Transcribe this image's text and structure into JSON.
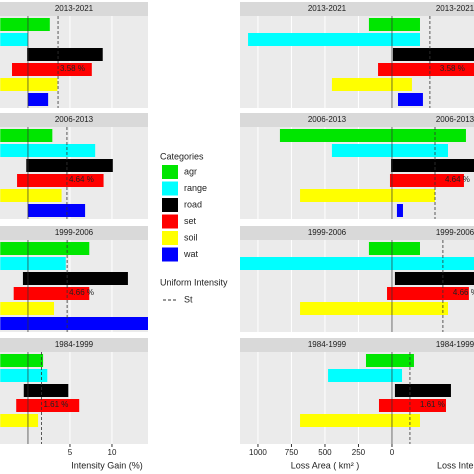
{
  "chart_data": [
    {
      "type": "floating-bar",
      "xlabel": "Intensity Gain (%)",
      "xlim": [
        -3.33,
        14.29
      ],
      "xticks": [
        5,
        10
      ],
      "facets": [
        {
          "title": "2013-2021",
          "start": [
            -3.3,
            -3.3,
            -0.1,
            -1.9,
            -3.3,
            0
          ],
          "end": [
            2.6,
            0,
            8.9,
            7.6,
            3.5,
            2.4
          ],
          "uniform": 3.58,
          "uniform_label": "3.58 %"
        },
        {
          "title": "2006-2013",
          "start": [
            -3.3,
            -3.3,
            -0.2,
            -1.3,
            -3.3,
            0
          ],
          "end": [
            2.9,
            8.0,
            10.1,
            9.0,
            4.0,
            6.8
          ],
          "uniform": 4.64,
          "uniform_label": "4.64 %"
        },
        {
          "title": "1999-2006",
          "start": [
            -3.3,
            -3.3,
            -0.6,
            -1.7,
            -3.3,
            -3.3
          ],
          "end": [
            7.3,
            4.5,
            11.9,
            7.3,
            3.1,
            14.3
          ],
          "uniform": 4.66,
          "uniform_label": "4.66 %"
        },
        {
          "title": "1984-1999",
          "start": [
            -3.3,
            -3.3,
            -0.5,
            -1.4,
            -3.3,
            null
          ],
          "end": [
            1.8,
            2.3,
            4.8,
            6.1,
            1.2,
            null
          ],
          "uniform": 1.61,
          "uniform_label": "1.61 %"
        }
      ]
    },
    {
      "type": "floating-bar",
      "xlabel": "Loss Area ( km² )",
      "xlabel2": "Loss Inte",
      "xlim": [
        1134,
        -612
      ],
      "xticks": [
        1000,
        750,
        500,
        250,
        0
      ],
      "facets": [
        {
          "title": "2013-2021",
          "start": [
            172,
            1074,
            -7,
            104,
            448,
            -45
          ],
          "end": [
            -209,
            -209,
            -612,
            -612,
            -149,
            -231
          ],
          "uniform": -283,
          "uniform_label": "3.58 %"
        },
        {
          "title": "2006-2013",
          "start": [
            836,
            448,
            7,
            15,
            686,
            -37
          ],
          "end": [
            -552,
            -418,
            -612,
            -537,
            -321,
            -82
          ],
          "uniform": -321,
          "uniform_label": "4.64 %"
        },
        {
          "title": "1999-2006",
          "start": [
            172,
            1134,
            -22,
            37,
            686,
            null
          ],
          "end": [
            -209,
            -612,
            -612,
            -574,
            -418,
            null
          ],
          "uniform": -380,
          "uniform_label": "4.66 %"
        },
        {
          "title": "1984-1999",
          "start": [
            194,
            477,
            -22,
            97,
            686,
            null
          ],
          "end": [
            -164,
            -75,
            -440,
            -403,
            -209,
            null
          ],
          "uniform": -134,
          "uniform_label": "1.61 %"
        }
      ]
    }
  ],
  "legend": {
    "title": "Categories",
    "items": [
      {
        "name": "agr",
        "color": "#00e600"
      },
      {
        "name": "range",
        "color": "#00ffff"
      },
      {
        "name": "road",
        "color": "#000000"
      },
      {
        "name": "set",
        "color": "#ff0000"
      },
      {
        "name": "soil",
        "color": "#ffff00"
      },
      {
        "name": "wat",
        "color": "#0000ff"
      }
    ]
  },
  "uniform_legend": {
    "title": "Uniform Intensity",
    "items": [
      "St"
    ]
  }
}
